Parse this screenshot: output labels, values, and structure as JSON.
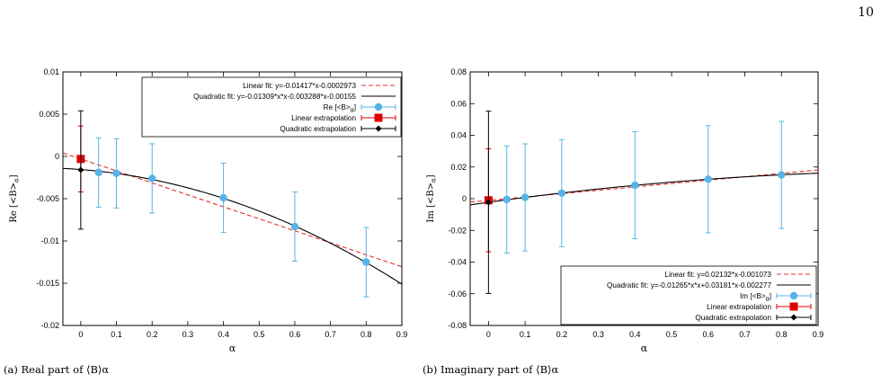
{
  "page_number": "10",
  "captions": [
    {
      "label": "(a)",
      "text": "Real part of ⟨B⟩α"
    },
    {
      "label": "(b)",
      "text": "Imaginary part of ⟨B⟩α"
    }
  ],
  "chart_data": [
    {
      "type": "scatter",
      "title": "",
      "xlabel": "α",
      "ylabel": "Re [<B>α]",
      "xlim": [
        -0.05,
        0.9
      ],
      "ylim": [
        -0.02,
        0.01
      ],
      "xticks": [
        "0",
        "0.1",
        "0.2",
        "0.3",
        "0.4",
        "0.5",
        "0.6",
        "0.7",
        "0.8",
        "0.9"
      ],
      "yticks": [
        "-0.02",
        "-0.015",
        "-0.01",
        "-0.005",
        "0",
        "0.005",
        "0.01"
      ],
      "grid": false,
      "legend_position": "top-right",
      "series": [
        {
          "name": "Linear fit: y=-0.01417*x-0.0002973",
          "kind": "line",
          "style": "dashed",
          "color": "#e8302c",
          "slope": -0.01417,
          "intercept": -0.0002973
        },
        {
          "name": "Quadratic fit: y=-0.01309*x*x-0.003288*x-0.00155",
          "kind": "line",
          "style": "solid",
          "color": "#000000",
          "a": -0.01309,
          "b": -0.003288,
          "c": -0.00155
        },
        {
          "name": "Re [<B>α]",
          "kind": "points",
          "color": "#56b4e9",
          "x": [
            0.05,
            0.1,
            0.2,
            0.4,
            0.6,
            0.8
          ],
          "y": [
            -0.0019,
            -0.002,
            -0.0026,
            -0.0049,
            -0.0083,
            -0.0125
          ],
          "err": [
            0.0041,
            0.0041,
            0.0041,
            0.0041,
            0.0041,
            0.0041
          ]
        },
        {
          "name": "Linear extrapolation",
          "kind": "points",
          "marker": "square",
          "color": "#dd0000",
          "x": [
            0
          ],
          "y": [
            -0.0003
          ],
          "err": [
            0.0039
          ]
        },
        {
          "name": "Quadratic extrapolation",
          "kind": "points",
          "marker": "diamond",
          "color": "#000000",
          "x": [
            0
          ],
          "y": [
            -0.0016
          ],
          "err": [
            0.007
          ]
        }
      ]
    },
    {
      "type": "scatter",
      "title": "",
      "xlabel": "α",
      "ylabel": "Im [<B>α]",
      "xlim": [
        -0.05,
        0.9
      ],
      "ylim": [
        -0.08,
        0.08
      ],
      "xticks": [
        "0",
        "0.1",
        "0.2",
        "0.3",
        "0.4",
        "0.5",
        "0.6",
        "0.7",
        "0.8",
        "0.9"
      ],
      "yticks": [
        "-0.08",
        "-0.06",
        "-0.04",
        "-0.02",
        "0",
        "0.02",
        "0.04",
        "0.06",
        "0.08"
      ],
      "grid": false,
      "legend_position": "bottom-right",
      "series": [
        {
          "name": "Linear fit: y=0.02132*x-0.001073",
          "kind": "line",
          "style": "dashed",
          "color": "#e8302c",
          "slope": 0.02132,
          "intercept": -0.001073
        },
        {
          "name": "Quadratic fit: y=-0.01265*x*x+0.03181*x-0.002277",
          "kind": "line",
          "style": "solid",
          "color": "#000000",
          "a": -0.01265,
          "b": 0.03181,
          "c": -0.002277
        },
        {
          "name": "Im [<B>α]",
          "kind": "points",
          "color": "#56b4e9",
          "x": [
            0.05,
            0.1,
            0.2,
            0.4,
            0.6,
            0.8
          ],
          "y": [
            -0.0005,
            0.0008,
            0.0035,
            0.0085,
            0.0123,
            0.015
          ],
          "err": [
            0.0338,
            0.0338,
            0.0338,
            0.0338,
            0.0338,
            0.0338
          ]
        },
        {
          "name": "Linear extrapolation",
          "kind": "points",
          "marker": "square",
          "color": "#dd0000",
          "x": [
            0
          ],
          "y": [
            -0.001
          ],
          "err": [
            0.0325
          ]
        },
        {
          "name": "Quadratic extrapolation",
          "kind": "points",
          "marker": "diamond",
          "color": "#000000",
          "x": [
            0
          ],
          "y": [
            -0.0023
          ],
          "err": [
            0.0575
          ]
        }
      ]
    }
  ]
}
